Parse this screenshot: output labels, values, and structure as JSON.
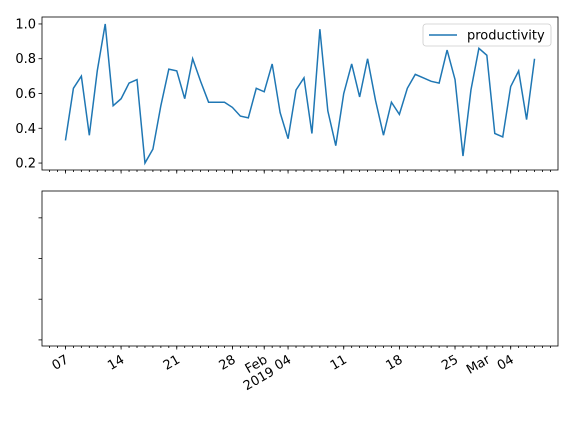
{
  "chart_data": [
    {
      "type": "line",
      "x": [
        "2019-01-07",
        "2019-01-08",
        "2019-01-09",
        "2019-01-10",
        "2019-01-11",
        "2019-01-12",
        "2019-01-13",
        "2019-01-14",
        "2019-01-15",
        "2019-01-16",
        "2019-01-17",
        "2019-01-18",
        "2019-01-19",
        "2019-01-20",
        "2019-01-21",
        "2019-01-22",
        "2019-01-23",
        "2019-01-24",
        "2019-01-25",
        "2019-01-26",
        "2019-01-27",
        "2019-01-28",
        "2019-01-29",
        "2019-01-30",
        "2019-01-31",
        "2019-02-01",
        "2019-02-02",
        "2019-02-03",
        "2019-02-04",
        "2019-02-05",
        "2019-02-06",
        "2019-02-07",
        "2019-02-08",
        "2019-02-09",
        "2019-02-10",
        "2019-02-11",
        "2019-02-12",
        "2019-02-13",
        "2019-02-14",
        "2019-02-15",
        "2019-02-16",
        "2019-02-17",
        "2019-02-18",
        "2019-02-19",
        "2019-02-20",
        "2019-02-21",
        "2019-02-22",
        "2019-02-23",
        "2019-02-24",
        "2019-02-25",
        "2019-02-26",
        "2019-02-27",
        "2019-02-28",
        "2019-03-01",
        "2019-03-02",
        "2019-03-03",
        "2019-03-04",
        "2019-03-05",
        "2019-03-06",
        "2019-03-07"
      ],
      "series": [
        {
          "name": "productivity",
          "color": "#1f77b4",
          "values": [
            0.33,
            0.63,
            0.7,
            0.36,
            0.73,
            1.0,
            0.53,
            0.57,
            0.66,
            0.68,
            0.2,
            0.28,
            0.53,
            0.74,
            0.73,
            0.57,
            0.8,
            0.67,
            0.55,
            0.55,
            0.55,
            0.52,
            0.47,
            0.46,
            0.63,
            0.61,
            0.77,
            0.49,
            0.34,
            0.62,
            0.69,
            0.37,
            0.97,
            0.5,
            0.3,
            0.6,
            0.77,
            0.58,
            0.8,
            0.56,
            0.36,
            0.55,
            0.48,
            0.63,
            0.71,
            0.69,
            0.67,
            0.66,
            0.85,
            0.68,
            0.24,
            0.62,
            0.86,
            0.82,
            0.37,
            0.35,
            0.64,
            0.73,
            0.45,
            0.8
          ]
        }
      ],
      "ylim": [
        0.16,
        1.04
      ],
      "yticks": [
        0.2,
        0.4,
        0.6,
        0.8,
        {
          "value": 1,
          "label": "1.0"
        }
      ],
      "legend": "upper right"
    },
    {
      "type": "line",
      "series": [],
      "ylim": [
        -0.15,
        3.66
      ],
      "yticks": [
        0,
        1,
        2,
        3
      ],
      "ytick_labels": false,
      "xlim": [
        "2019-01-04T01:12",
        "2019-03-09T22:48"
      ],
      "x_minor": "day",
      "xticks": [
        {
          "value": "2019-01-07",
          "label": [
            "07"
          ]
        },
        {
          "value": "2019-01-14",
          "label": [
            "14"
          ]
        },
        {
          "value": "2019-01-21",
          "label": [
            "21"
          ]
        },
        {
          "value": "2019-01-28",
          "label": [
            "28"
          ]
        },
        {
          "value": "2019-02-01",
          "label": [
            "Feb",
            "2019"
          ]
        },
        {
          "value": "2019-02-04",
          "label": [
            "04"
          ]
        },
        {
          "value": "2019-02-11",
          "label": [
            "11"
          ]
        },
        {
          "value": "2019-02-18",
          "label": [
            "18"
          ]
        },
        {
          "value": "2019-02-25",
          "label": [
            "25"
          ]
        },
        {
          "value": "2019-03-01",
          "label": [
            "Mar"
          ]
        },
        {
          "value": "2019-03-04",
          "label": [
            "04"
          ]
        }
      ]
    }
  ]
}
